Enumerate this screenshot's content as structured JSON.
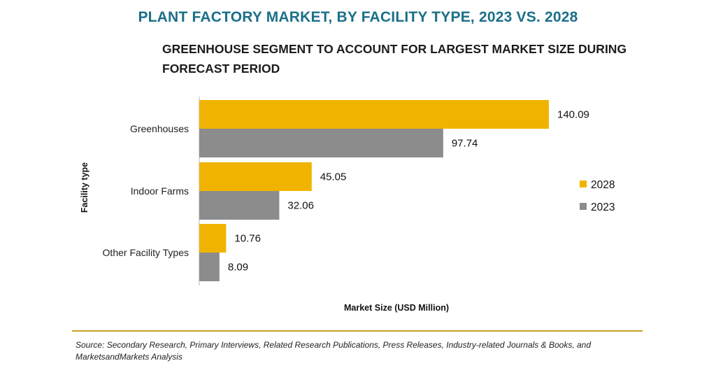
{
  "title": "PLANT FACTORY MARKET, BY FACILITY TYPE, 2023 VS. 2028",
  "subtitle": "GREENHOUSE SEGMENT TO ACCOUNT FOR LARGEST MARKET SIZE DURING FORECAST PERIOD",
  "source": "Source: Secondary Research, Primary Interviews, Related Research Publications, Press Releases, Industry-related Journals & Books, and MarketsandMarkets Analysis",
  "chart_data": {
    "type": "bar",
    "orientation": "horizontal",
    "categories": [
      "Greenhouses",
      "Indoor Farms",
      "Other Facility Types"
    ],
    "series": [
      {
        "name": "2028",
        "values": [
          140.09,
          45.05,
          10.76
        ],
        "color": "#f0b400"
      },
      {
        "name": "2023",
        "values": [
          97.74,
          32.06,
          8.09
        ],
        "color": "#8c8c8c"
      }
    ],
    "xlabel": "Market Size (USD Million)",
    "ylabel": "Facility type",
    "xlim": [
      0,
      140.09
    ],
    "legend_position": "right",
    "grid": false
  },
  "colors": {
    "title": "#1b6f88",
    "divider": "#c9a227"
  }
}
